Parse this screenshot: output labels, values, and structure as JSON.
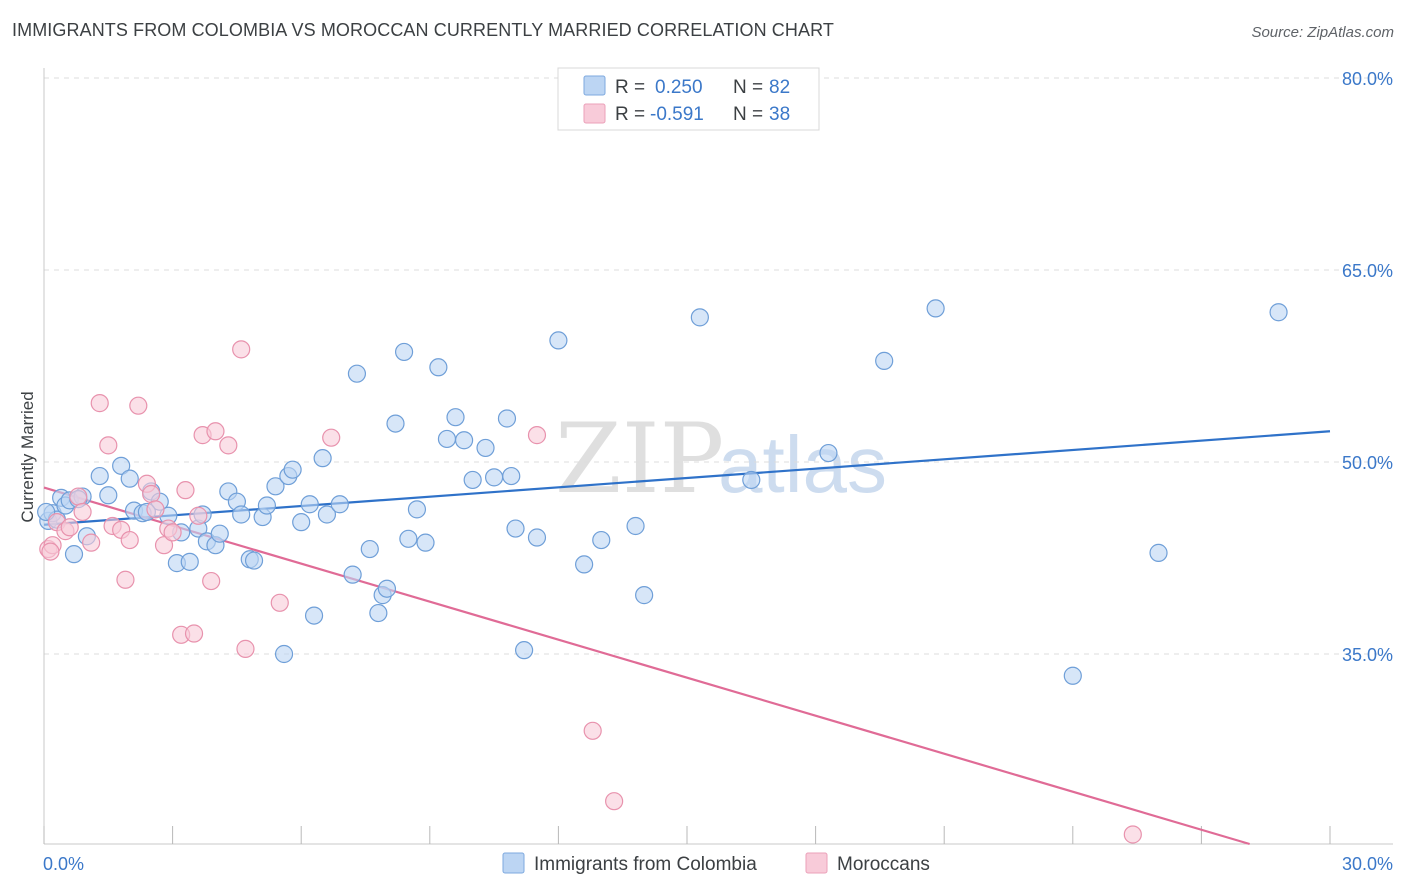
{
  "title": "IMMIGRANTS FROM COLOMBIA VS MOROCCAN CURRENTLY MARRIED CORRELATION CHART",
  "source": "Source: ZipAtlas.com",
  "watermark": {
    "part1": "ZIP",
    "part2": "atlas"
  },
  "legend": {
    "rows": [
      {
        "r_label": "R =",
        "r_value": "0.250",
        "n_label": "N =",
        "n_value": "82",
        "color": "#a9c8ef"
      },
      {
        "r_label": "R =",
        "r_value": "-0.591",
        "n_label": "N =",
        "n_value": "38",
        "color": "#f5b8cb"
      }
    ]
  },
  "bottom_legend": [
    {
      "label": "Immigrants from Colombia",
      "color": "#a9c8ef"
    },
    {
      "label": "Moroccans",
      "color": "#f5b8cb"
    }
  ],
  "chart_data": {
    "type": "scatter",
    "title": "IMMIGRANTS FROM COLOMBIA VS MOROCCAN CURRENTLY MARRIED CORRELATION CHART",
    "xlabel": "",
    "ylabel": "Currently Married",
    "xlim": [
      0,
      30
    ],
    "ylim": [
      20,
      82
    ],
    "x_tick_labels": [
      "0.0%",
      "30.0%"
    ],
    "y_ticks": [
      35,
      50,
      65,
      80
    ],
    "y_tick_labels": [
      "35.0%",
      "50.0%",
      "65.0%",
      "80.0%"
    ],
    "grid": true,
    "legend_position": "top-center",
    "series": [
      {
        "name": "Immigrants from Colombia",
        "color": "#6f9fd8",
        "fill": "#bcd5f3",
        "trend_color": "#2f72c9",
        "trend": [
          [
            0,
            45.1
          ],
          [
            30,
            52.4
          ]
        ],
        "points": [
          [
            0.1,
            45.4
          ],
          [
            0.2,
            46.0
          ],
          [
            0.3,
            45.5
          ],
          [
            0.4,
            47.2
          ],
          [
            0.5,
            46.6
          ],
          [
            0.6,
            47.0
          ],
          [
            0.7,
            42.8
          ],
          [
            0.9,
            47.3
          ],
          [
            1.0,
            44.2
          ],
          [
            1.3,
            48.9
          ],
          [
            1.5,
            47.4
          ],
          [
            1.8,
            49.7
          ],
          [
            2.0,
            48.7
          ],
          [
            2.1,
            46.2
          ],
          [
            2.3,
            46.0
          ],
          [
            2.5,
            47.7
          ],
          [
            2.7,
            46.9
          ],
          [
            2.9,
            45.8
          ],
          [
            3.1,
            42.1
          ],
          [
            3.2,
            44.5
          ],
          [
            3.4,
            42.2
          ],
          [
            3.6,
            44.8
          ],
          [
            3.7,
            45.9
          ],
          [
            3.8,
            43.8
          ],
          [
            4.0,
            43.5
          ],
          [
            4.1,
            44.4
          ],
          [
            4.3,
            47.7
          ],
          [
            4.5,
            46.9
          ],
          [
            4.6,
            45.9
          ],
          [
            4.8,
            42.4
          ],
          [
            4.9,
            42.3
          ],
          [
            5.1,
            45.7
          ],
          [
            5.2,
            46.6
          ],
          [
            5.4,
            48.1
          ],
          [
            5.6,
            35.0
          ],
          [
            5.7,
            48.9
          ],
          [
            5.8,
            49.4
          ],
          [
            6.0,
            45.3
          ],
          [
            6.2,
            46.7
          ],
          [
            6.3,
            38.0
          ],
          [
            6.5,
            50.3
          ],
          [
            6.6,
            45.9
          ],
          [
            6.9,
            46.7
          ],
          [
            7.2,
            41.2
          ],
          [
            7.3,
            56.9
          ],
          [
            7.6,
            43.2
          ],
          [
            7.8,
            38.2
          ],
          [
            7.9,
            39.6
          ],
          [
            8.0,
            40.1
          ],
          [
            8.2,
            53.0
          ],
          [
            8.4,
            58.6
          ],
          [
            8.5,
            44.0
          ],
          [
            8.7,
            46.3
          ],
          [
            8.9,
            43.7
          ],
          [
            9.2,
            57.4
          ],
          [
            9.4,
            51.8
          ],
          [
            9.6,
            53.5
          ],
          [
            9.8,
            51.7
          ],
          [
            10.0,
            48.6
          ],
          [
            10.3,
            51.1
          ],
          [
            10.5,
            48.8
          ],
          [
            10.8,
            53.4
          ],
          [
            10.9,
            48.9
          ],
          [
            11.0,
            44.8
          ],
          [
            11.2,
            35.3
          ],
          [
            11.5,
            44.1
          ],
          [
            12.0,
            59.5
          ],
          [
            12.6,
            42.0
          ],
          [
            13.0,
            43.9
          ],
          [
            13.8,
            45.0
          ],
          [
            14.0,
            39.6
          ],
          [
            15.3,
            61.3
          ],
          [
            16.5,
            48.6
          ],
          [
            18.3,
            50.7
          ],
          [
            19.6,
            57.9
          ],
          [
            20.8,
            62.0
          ],
          [
            24.0,
            33.3
          ],
          [
            26.0,
            42.9
          ],
          [
            28.8,
            61.7
          ],
          [
            0.05,
            46.1
          ],
          [
            0.8,
            47.1
          ],
          [
            2.4,
            46.1
          ]
        ]
      },
      {
        "name": "Moroccans",
        "color": "#e892ad",
        "fill": "#f8cbd9",
        "trend_color": "#e06b96",
        "trend": [
          [
            0,
            48.0
          ],
          [
            30,
            18.3
          ]
        ],
        "points": [
          [
            0.1,
            43.2
          ],
          [
            0.2,
            43.5
          ],
          [
            0.3,
            45.3
          ],
          [
            0.5,
            44.6
          ],
          [
            0.6,
            44.9
          ],
          [
            0.8,
            47.3
          ],
          [
            0.9,
            46.1
          ],
          [
            1.1,
            43.7
          ],
          [
            1.3,
            54.6
          ],
          [
            1.5,
            51.3
          ],
          [
            1.6,
            45.0
          ],
          [
            1.8,
            44.7
          ],
          [
            1.9,
            40.8
          ],
          [
            2.0,
            43.9
          ],
          [
            2.2,
            54.4
          ],
          [
            2.4,
            48.3
          ],
          [
            2.5,
            47.5
          ],
          [
            2.6,
            46.3
          ],
          [
            2.8,
            43.5
          ],
          [
            2.9,
            44.8
          ],
          [
            3.0,
            44.5
          ],
          [
            3.2,
            36.5
          ],
          [
            3.3,
            47.8
          ],
          [
            3.5,
            36.6
          ],
          [
            3.7,
            52.1
          ],
          [
            3.9,
            40.7
          ],
          [
            4.0,
            52.4
          ],
          [
            4.3,
            51.3
          ],
          [
            4.6,
            58.8
          ],
          [
            4.7,
            35.4
          ],
          [
            5.5,
            39.0
          ],
          [
            6.7,
            51.9
          ],
          [
            11.5,
            52.1
          ],
          [
            12.8,
            29.0
          ],
          [
            13.3,
            23.5
          ],
          [
            25.4,
            20.9
          ],
          [
            0.15,
            43.0
          ],
          [
            3.6,
            45.8
          ]
        ]
      }
    ]
  }
}
